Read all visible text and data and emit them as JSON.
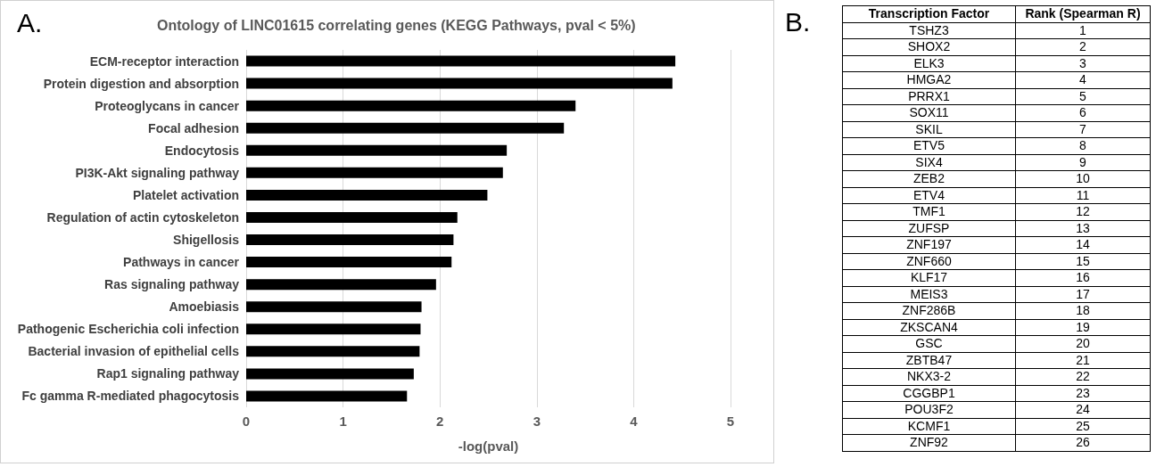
{
  "chart_data": [
    {
      "type": "bar",
      "orientation": "horizontal",
      "title": "Ontology of LINC01615 correlating genes (KEGG Pathways, pval < 5%)",
      "xlabel": "-log(pval)",
      "annotations": [
        "A."
      ],
      "categories": [
        "ECM-receptor interaction",
        "Protein digestion and absorption",
        "Proteoglycans in cancer",
        "Focal adhesion",
        "Endocytosis",
        "PI3K-Akt signaling pathway",
        "Platelet activation",
        "Regulation of actin cytoskeleton",
        "Shigellosis",
        "Pathways in cancer",
        "Ras signaling pathway",
        "Amoebiasis",
        "Pathogenic Escherichia coli infection",
        "Bacterial invasion of epithelial cells",
        "Rap1 signaling pathway",
        "Fc gamma R-mediated phagocytosis"
      ],
      "values": [
        4.43,
        4.4,
        3.4,
        3.28,
        2.69,
        2.65,
        2.49,
        2.18,
        2.14,
        2.12,
        1.96,
        1.81,
        1.8,
        1.79,
        1.73,
        1.66
      ],
      "color": "#000000",
      "xlim": [
        0,
        5
      ],
      "xticks": [
        0,
        1,
        2,
        3,
        4,
        5
      ],
      "grid": "x"
    },
    {
      "type": "other",
      "annotations": [
        "B."
      ],
      "xlabel": "Transcription Factor",
      "ylabel": "Rank (Spearman R)",
      "categories": [
        "TSHZ3",
        "SHOX2",
        "ELK3",
        "HMGA2",
        "PRRX1",
        "SOX11",
        "SKIL",
        "ETV5",
        "SIX4",
        "ZEB2",
        "ETV4",
        "TMF1",
        "ZUFSP",
        "ZNF197",
        "ZNF660",
        "KLF17",
        "MEIS3",
        "ZNF286B",
        "ZKSCAN4",
        "GSC",
        "ZBTB47",
        "NKX3-2",
        "CGGBP1",
        "POU3F2",
        "KCMF1",
        "ZNF92"
      ],
      "values": [
        1,
        2,
        3,
        4,
        5,
        6,
        7,
        8,
        9,
        10,
        11,
        12,
        13,
        14,
        15,
        16,
        17,
        18,
        19,
        20,
        21,
        22,
        23,
        24,
        25,
        26
      ],
      "data_labels": true
    }
  ]
}
